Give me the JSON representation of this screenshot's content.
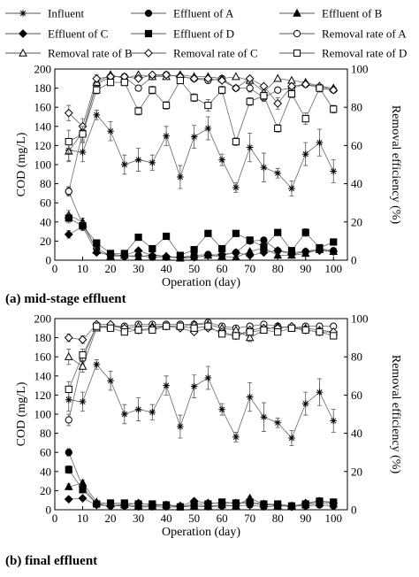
{
  "legend": [
    {
      "label": "Influent",
      "marker": "star"
    },
    {
      "label": "Effluent of A",
      "marker": "circle-filled"
    },
    {
      "label": "Effluent of B",
      "marker": "triangle-filled"
    },
    {
      "label": "Effluent of C",
      "marker": "diamond-filled"
    },
    {
      "label": "Effluent of D",
      "marker": "square-filled"
    },
    {
      "label": "Removal rate of A",
      "marker": "circle-open"
    },
    {
      "label": "Removal rate of B",
      "marker": "triangle-open"
    },
    {
      "label": "Removal rate of C",
      "marker": "diamond-open"
    },
    {
      "label": "Removal rate of D",
      "marker": "square-open"
    }
  ],
  "captions": {
    "a": "(a) mid-stage effluent",
    "b": "(b) final effluent"
  },
  "chart_data": [
    {
      "type": "line",
      "panel": "a",
      "xlabel": "Operation (day)",
      "ylabel": "COD (mg/L)",
      "y2label": "Removal efficiency (%)",
      "xlim": [
        0,
        105
      ],
      "ylim": [
        0,
        200
      ],
      "y2lim": [
        0,
        100
      ],
      "xticks": [
        0,
        10,
        20,
        30,
        40,
        50,
        60,
        70,
        80,
        90,
        100
      ],
      "yticks": [
        0,
        20,
        40,
        60,
        80,
        100,
        120,
        140,
        160,
        180,
        200
      ],
      "y2ticks": [
        0,
        20,
        40,
        60,
        80,
        100
      ],
      "grid": false,
      "x": [
        5,
        10,
        15,
        20,
        25,
        30,
        35,
        40,
        45,
        50,
        55,
        60,
        65,
        70,
        75,
        80,
        85,
        90,
        95,
        100
      ],
      "series": [
        {
          "name": "Influent",
          "axis": "left",
          "marker": "star",
          "values": [
            115,
            113,
            152,
            135,
            100,
            105,
            102,
            130,
            87,
            129,
            138,
            105,
            76,
            118,
            97,
            91,
            75,
            111,
            123,
            93
          ],
          "err": [
            12,
            10,
            5,
            10,
            10,
            12,
            8,
            10,
            12,
            12,
            12,
            6,
            5,
            15,
            15,
            5,
            8,
            12,
            14,
            12
          ]
        },
        {
          "name": "Effluent of A",
          "axis": "left",
          "marker": "circle-filled",
          "values": [
            72,
            37,
            12,
            5,
            4,
            5,
            3,
            3,
            3,
            5,
            6,
            5,
            8,
            20,
            21,
            10,
            8,
            9,
            12,
            10
          ],
          "err": [
            5,
            4,
            2,
            1,
            1,
            1,
            1,
            1,
            1,
            1,
            1,
            1,
            1,
            2,
            2,
            1,
            1,
            1,
            1,
            1
          ]
        },
        {
          "name": "Effluent of B",
          "axis": "left",
          "marker": "triangle-filled",
          "values": [
            47,
            40,
            10,
            4,
            5,
            3,
            6,
            4,
            2,
            3,
            5,
            4,
            3,
            9,
            13,
            5,
            5,
            7,
            11,
            9
          ],
          "err": [
            5,
            4,
            2,
            1,
            1,
            1,
            1,
            1,
            1,
            1,
            1,
            1,
            1,
            2,
            2,
            1,
            1,
            1,
            1,
            1
          ]
        },
        {
          "name": "Effluent of C",
          "axis": "left",
          "marker": "diamond-filled",
          "values": [
            27,
            35,
            8,
            6,
            5,
            10,
            5,
            4,
            3,
            3,
            5,
            6,
            8,
            5,
            8,
            10,
            6,
            9,
            10,
            9
          ],
          "err": [
            4,
            4,
            2,
            1,
            1,
            1,
            1,
            1,
            1,
            1,
            1,
            1,
            1,
            1,
            1,
            1,
            1,
            1,
            1,
            1
          ]
        },
        {
          "name": "Effluent of D",
          "axis": "left",
          "marker": "square-filled",
          "values": [
            44,
            36,
            18,
            7,
            7,
            24,
            12,
            25,
            5,
            11,
            28,
            12,
            28,
            21,
            14,
            29,
            10,
            29,
            13,
            19
          ],
          "err": [
            5,
            4,
            2,
            1,
            1,
            2,
            2,
            2,
            1,
            2,
            3,
            2,
            2,
            2,
            2,
            2,
            2,
            4,
            2,
            2
          ]
        },
        {
          "name": "Removal rate of A",
          "axis": "right",
          "marker": "circle-open",
          "values": [
            36,
            67,
            92,
            96,
            96,
            90,
            96,
            97,
            96,
            95,
            94,
            95,
            90,
            90,
            85,
            89,
            90,
            92,
            90,
            89
          ],
          "err": [
            2,
            2,
            2,
            1,
            1,
            1,
            1,
            1,
            1,
            1,
            1,
            1,
            1,
            2,
            2,
            1,
            1,
            1,
            1,
            1
          ]
        },
        {
          "name": "Removal rate of B",
          "axis": "right",
          "marker": "triangle-open",
          "values": [
            57,
            67,
            93,
            97,
            95,
            97,
            96,
            96,
            97,
            96,
            96,
            95,
            96,
            94,
            88,
            95,
            94,
            93,
            91,
            90
          ],
          "err": [
            5,
            4,
            2,
            1,
            1,
            1,
            1,
            1,
            1,
            1,
            1,
            1,
            1,
            2,
            2,
            1,
            1,
            1,
            1,
            1
          ]
        },
        {
          "name": "Removal rate of C",
          "axis": "right",
          "marker": "diamond-open",
          "values": [
            77,
            70,
            95,
            96,
            96,
            95,
            97,
            97,
            96,
            95,
            95,
            94,
            90,
            95,
            91,
            82,
            91,
            92,
            91,
            89
          ],
          "err": [
            4,
            4,
            2,
            1,
            1,
            1,
            1,
            1,
            1,
            1,
            1,
            1,
            1,
            1,
            1,
            3,
            1,
            1,
            1,
            1
          ]
        },
        {
          "name": "Removal rate of D",
          "axis": "right",
          "marker": "square-open",
          "values": [
            62,
            66,
            89,
            93,
            93,
            78,
            89,
            81,
            94,
            85,
            81,
            89,
            62,
            83,
            86,
            69,
            87,
            74,
            90,
            79
          ],
          "err": [
            6,
            4,
            2,
            1,
            1,
            2,
            2,
            2,
            1,
            2,
            3,
            2,
            2,
            2,
            2,
            2,
            2,
            3,
            2,
            2
          ]
        }
      ]
    },
    {
      "type": "line",
      "panel": "b",
      "xlabel": "Operation (day)",
      "ylabel": "COD (mg/L)",
      "y2label": "Removal efficiency (%)",
      "xlim": [
        0,
        105
      ],
      "ylim": [
        0,
        200
      ],
      "y2lim": [
        0,
        100
      ],
      "xticks": [
        0,
        10,
        20,
        30,
        40,
        50,
        60,
        70,
        80,
        90,
        100
      ],
      "yticks": [
        0,
        20,
        40,
        60,
        80,
        100,
        120,
        140,
        160,
        180,
        200
      ],
      "y2ticks": [
        0,
        20,
        40,
        60,
        80,
        100
      ],
      "grid": false,
      "x": [
        5,
        10,
        15,
        20,
        25,
        30,
        35,
        40,
        45,
        50,
        55,
        60,
        65,
        70,
        75,
        80,
        85,
        90,
        95,
        100
      ],
      "series": [
        {
          "name": "Influent",
          "axis": "left",
          "marker": "star",
          "values": [
            115,
            113,
            152,
            135,
            100,
            105,
            102,
            130,
            87,
            129,
            138,
            105,
            76,
            118,
            97,
            91,
            75,
            111,
            123,
            93
          ],
          "err": [
            12,
            10,
            5,
            10,
            10,
            12,
            8,
            10,
            12,
            12,
            12,
            6,
            5,
            15,
            15,
            5,
            8,
            12,
            14,
            12
          ]
        },
        {
          "name": "Effluent of A",
          "axis": "left",
          "marker": "circle-filled",
          "values": [
            60,
            24,
            6,
            4,
            4,
            3,
            3,
            3,
            3,
            4,
            3,
            4,
            4,
            5,
            3,
            4,
            4,
            4,
            5,
            4
          ],
          "err": [
            4,
            3,
            1,
            1,
            1,
            1,
            1,
            1,
            1,
            1,
            1,
            1,
            1,
            1,
            1,
            1,
            1,
            1,
            1,
            1
          ]
        },
        {
          "name": "Effluent of B",
          "axis": "left",
          "marker": "triangle-filled",
          "values": [
            24,
            28,
            8,
            6,
            5,
            4,
            4,
            5,
            3,
            4,
            4,
            5,
            4,
            12,
            6,
            4,
            4,
            5,
            7,
            6
          ],
          "err": [
            3,
            3,
            1,
            1,
            1,
            1,
            1,
            1,
            1,
            1,
            1,
            1,
            1,
            2,
            1,
            1,
            1,
            1,
            1,
            1
          ]
        },
        {
          "name": "Effluent of C",
          "axis": "left",
          "marker": "diamond-filled",
          "values": [
            11,
            12,
            5,
            4,
            5,
            7,
            5,
            5,
            4,
            9,
            7,
            7,
            7,
            7,
            5,
            5,
            3,
            7,
            9,
            7
          ],
          "err": [
            2,
            2,
            1,
            1,
            1,
            1,
            1,
            1,
            1,
            1,
            1,
            1,
            1,
            1,
            1,
            1,
            1,
            1,
            1,
            1
          ]
        },
        {
          "name": "Effluent of D",
          "axis": "left",
          "marker": "square-filled",
          "values": [
            42,
            21,
            6,
            7,
            7,
            6,
            6,
            5,
            3,
            6,
            6,
            8,
            7,
            8,
            6,
            6,
            4,
            6,
            9,
            8
          ],
          "err": [
            4,
            3,
            1,
            1,
            1,
            1,
            1,
            1,
            1,
            1,
            1,
            1,
            1,
            1,
            1,
            1,
            1,
            1,
            1,
            1
          ]
        },
        {
          "name": "Removal rate of A",
          "axis": "right",
          "marker": "circle-open",
          "values": [
            47,
            79,
            96,
            96,
            96,
            97,
            97,
            97,
            97,
            97,
            98,
            96,
            95,
            96,
            97,
            96,
            95,
            96,
            96,
            96
          ],
          "err": [
            3,
            3,
            1,
            1,
            1,
            1,
            1,
            1,
            1,
            1,
            1,
            1,
            1,
            1,
            1,
            1,
            1,
            1,
            1,
            1
          ]
        },
        {
          "name": "Removal rate of B",
          "axis": "right",
          "marker": "triangle-open",
          "values": [
            80,
            75,
            95,
            96,
            95,
            96,
            96,
            96,
            96,
            97,
            97,
            95,
            94,
            90,
            94,
            96,
            95,
            95,
            94,
            93
          ],
          "err": [
            4,
            3,
            1,
            1,
            1,
            1,
            1,
            1,
            1,
            1,
            1,
            1,
            1,
            2,
            1,
            1,
            1,
            1,
            1,
            1
          ]
        },
        {
          "name": "Removal rate of C",
          "axis": "right",
          "marker": "diamond-open",
          "values": [
            90,
            89,
            97,
            97,
            95,
            94,
            95,
            96,
            95,
            93,
            95,
            93,
            91,
            94,
            95,
            95,
            96,
            94,
            93,
            93
          ],
          "err": [
            2,
            2,
            1,
            1,
            1,
            1,
            1,
            1,
            1,
            1,
            1,
            1,
            1,
            1,
            1,
            1,
            1,
            1,
            1,
            1
          ]
        },
        {
          "name": "Removal rate of D",
          "axis": "right",
          "marker": "square-open",
          "values": [
            63,
            81,
            96,
            95,
            93,
            94,
            94,
            96,
            96,
            95,
            96,
            92,
            91,
            93,
            94,
            93,
            95,
            94,
            93,
            91
          ],
          "err": [
            4,
            3,
            1,
            1,
            1,
            1,
            1,
            1,
            1,
            1,
            1,
            1,
            1,
            1,
            1,
            1,
            1,
            1,
            1,
            1
          ]
        }
      ]
    }
  ]
}
